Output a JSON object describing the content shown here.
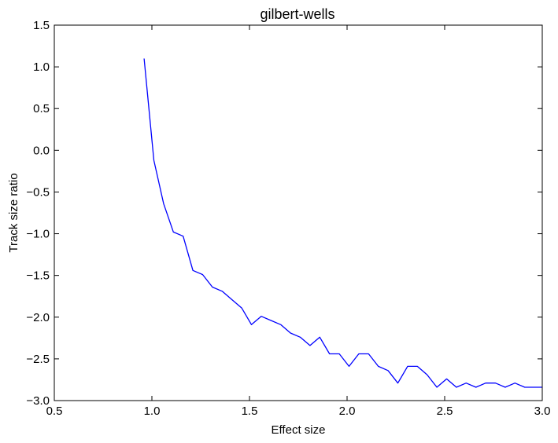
{
  "chart_data": {
    "type": "line",
    "title": "gilbert-wells",
    "xlabel": "Effect size",
    "ylabel": "Track size ratio",
    "xlim": [
      0.5,
      3.0
    ],
    "ylim": [
      -3.0,
      1.5
    ],
    "xticks": [
      "0.5",
      "1.0",
      "1.5",
      "2.0",
      "2.5",
      "3.0"
    ],
    "yticks": [
      "1.5",
      "1.0",
      "0.5",
      "0.0",
      "−0.5",
      "−1.0",
      "−1.5",
      "−2.0",
      "−2.5",
      "−3.0"
    ],
    "grid": false,
    "line_color": "#0000ff",
    "series": [
      {
        "x": [
          0.96,
          1.01,
          1.06,
          1.11,
          1.16,
          1.21,
          1.26,
          1.31,
          1.36,
          1.41,
          1.46,
          1.51,
          1.56,
          1.61,
          1.66,
          1.71,
          1.76,
          1.81,
          1.86,
          1.91,
          1.96,
          2.01,
          2.06,
          2.11,
          2.16,
          2.21,
          2.26,
          2.31,
          2.36,
          2.41,
          2.46,
          2.51,
          2.56,
          2.61,
          2.66,
          2.71,
          2.76,
          2.81,
          2.86,
          2.91,
          2.96,
          3.0
        ],
        "y": [
          1.1,
          -0.12,
          -0.64,
          -0.98,
          -1.03,
          -1.44,
          -1.49,
          -1.64,
          -1.69,
          -1.79,
          -1.89,
          -2.09,
          -1.99,
          -2.04,
          -2.09,
          -2.19,
          -2.24,
          -2.34,
          -2.24,
          -2.44,
          -2.44,
          -2.59,
          -2.44,
          -2.44,
          -2.59,
          -2.64,
          -2.79,
          -2.59,
          -2.59,
          -2.69,
          -2.84,
          -2.74,
          -2.84,
          -2.79,
          -2.84,
          -2.79,
          -2.79,
          -2.84,
          -2.79,
          -2.84,
          -2.84,
          -2.84
        ]
      }
    ]
  }
}
